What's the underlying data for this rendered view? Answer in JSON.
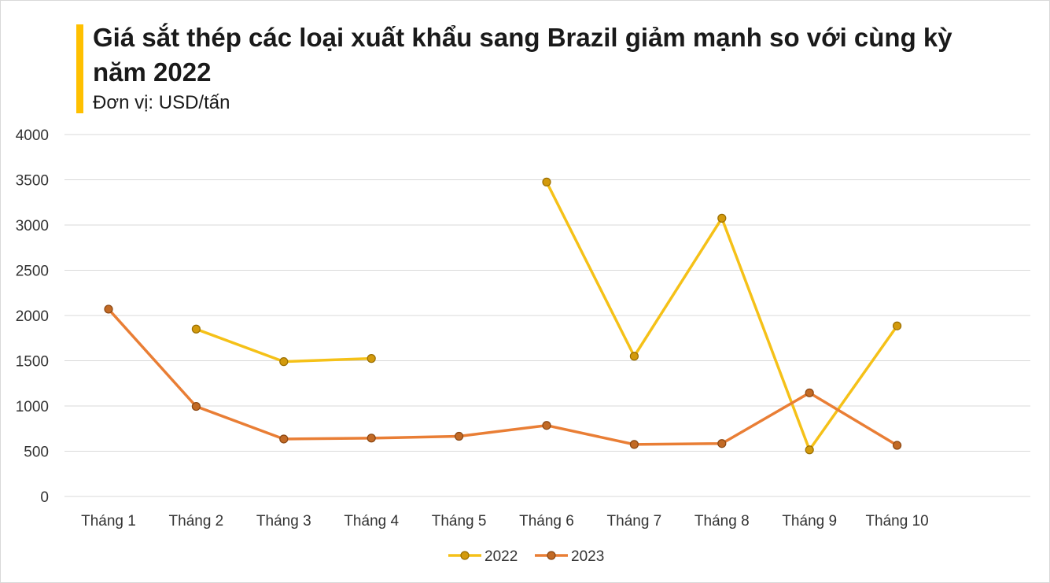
{
  "colors": {
    "accent": "#FFC000",
    "series_2022": "#F5C118",
    "series_2023": "#E97E35"
  },
  "chart_data": {
    "type": "line",
    "title": "Giá sắt thép các loại xuất khẩu sang Brazil giảm mạnh so với cùng kỳ năm 2022",
    "subtitle": "Đơn vị: USD/tấn",
    "categories": [
      "Tháng 1",
      "Tháng 2",
      "Tháng 3",
      "Tháng 4",
      "Tháng 5",
      "Tháng 6",
      "Tháng 7",
      "Tháng 8",
      "Tháng 9",
      "Tháng 10"
    ],
    "series": [
      {
        "name": "2022",
        "color": "#F5C118",
        "values": [
          null,
          1850,
          1490,
          1525,
          null,
          3475,
          1550,
          3075,
          515,
          1885
        ]
      },
      {
        "name": "2023",
        "color": "#E97E35",
        "values": [
          2070,
          995,
          635,
          645,
          665,
          785,
          575,
          585,
          1145,
          565
        ]
      }
    ],
    "ylim": [
      0,
      4000
    ],
    "yticks": [
      0,
      500,
      1000,
      1500,
      2000,
      2500,
      3000,
      3500,
      4000
    ],
    "xlabel": "",
    "ylabel": "",
    "grid": true,
    "legend": "bottom"
  }
}
